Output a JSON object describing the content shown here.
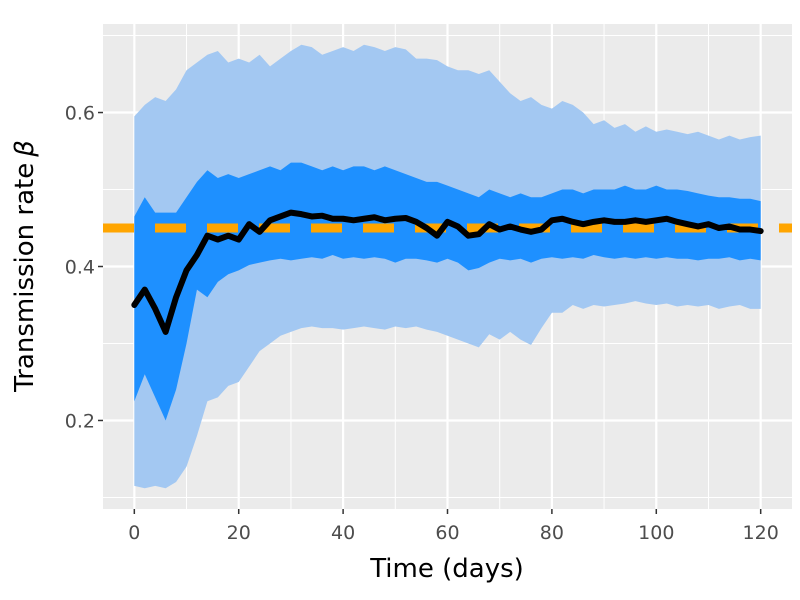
{
  "chart_data": {
    "type": "area",
    "xlabel": "Time (days)",
    "ylabel": "Transmission rate",
    "ylabel_symbol": "β",
    "xlim": [
      -6,
      126
    ],
    "ylim": [
      0.085,
      0.715
    ],
    "x_ticks": [
      0,
      20,
      40,
      60,
      80,
      100,
      120
    ],
    "x_tick_labels": [
      "0",
      "20",
      "40",
      "60",
      "80",
      "100",
      "120"
    ],
    "x_minor_ticks": [
      10,
      30,
      50,
      70,
      90,
      110
    ],
    "y_ticks": [
      0.2,
      0.4,
      0.6
    ],
    "y_tick_labels": [
      "0.2",
      "0.4",
      "0.6"
    ],
    "y_minor_ticks": [
      0.1,
      0.3,
      0.5,
      0.7
    ],
    "grid": true,
    "legend": "none",
    "colors": {
      "panel": "#ebebeb",
      "grid": "#ffffff",
      "outer_band": "#a3c8f2",
      "inner_band": "#1e90ff",
      "mean_line": "#000000",
      "reference_line": "#ffa500"
    },
    "reference_line": {
      "y": 0.45,
      "style": "dashed"
    },
    "x": [
      0,
      2,
      4,
      6,
      8,
      10,
      12,
      14,
      16,
      18,
      20,
      22,
      24,
      26,
      28,
      30,
      32,
      34,
      36,
      38,
      40,
      42,
      44,
      46,
      48,
      50,
      52,
      54,
      56,
      58,
      60,
      62,
      64,
      66,
      68,
      70,
      72,
      74,
      76,
      78,
      80,
      82,
      84,
      86,
      88,
      90,
      92,
      94,
      96,
      98,
      100,
      102,
      104,
      106,
      108,
      110,
      112,
      114,
      116,
      118,
      120
    ],
    "series": [
      {
        "role": "outer_interval",
        "lower": [
          0.115,
          0.112,
          0.115,
          0.112,
          0.12,
          0.14,
          0.18,
          0.225,
          0.23,
          0.245,
          0.25,
          0.27,
          0.29,
          0.3,
          0.31,
          0.315,
          0.32,
          0.322,
          0.32,
          0.32,
          0.318,
          0.32,
          0.322,
          0.32,
          0.318,
          0.322,
          0.32,
          0.322,
          0.318,
          0.315,
          0.31,
          0.305,
          0.3,
          0.295,
          0.312,
          0.305,
          0.315,
          0.305,
          0.298,
          0.32,
          0.34,
          0.34,
          0.35,
          0.345,
          0.35,
          0.348,
          0.35,
          0.352,
          0.355,
          0.352,
          0.35,
          0.352,
          0.348,
          0.35,
          0.348,
          0.35,
          0.345,
          0.348,
          0.35,
          0.345,
          0.345
        ],
        "upper": [
          0.595,
          0.61,
          0.62,
          0.615,
          0.63,
          0.655,
          0.665,
          0.675,
          0.68,
          0.665,
          0.67,
          0.665,
          0.675,
          0.66,
          0.67,
          0.68,
          0.688,
          0.685,
          0.675,
          0.68,
          0.685,
          0.68,
          0.688,
          0.685,
          0.68,
          0.685,
          0.682,
          0.67,
          0.67,
          0.668,
          0.66,
          0.655,
          0.655,
          0.65,
          0.655,
          0.64,
          0.625,
          0.615,
          0.62,
          0.61,
          0.605,
          0.615,
          0.61,
          0.6,
          0.585,
          0.59,
          0.58,
          0.585,
          0.575,
          0.582,
          0.575,
          0.578,
          0.575,
          0.572,
          0.575,
          0.57,
          0.565,
          0.57,
          0.565,
          0.568,
          0.57
        ]
      },
      {
        "role": "inner_interval",
        "lower": [
          0.225,
          0.26,
          0.23,
          0.2,
          0.24,
          0.3,
          0.37,
          0.36,
          0.38,
          0.39,
          0.395,
          0.402,
          0.405,
          0.408,
          0.41,
          0.408,
          0.41,
          0.412,
          0.41,
          0.415,
          0.41,
          0.412,
          0.41,
          0.412,
          0.41,
          0.405,
          0.41,
          0.41,
          0.408,
          0.405,
          0.41,
          0.405,
          0.395,
          0.398,
          0.405,
          0.41,
          0.408,
          0.41,
          0.405,
          0.41,
          0.412,
          0.41,
          0.412,
          0.41,
          0.415,
          0.412,
          0.41,
          0.412,
          0.41,
          0.412,
          0.41,
          0.412,
          0.41,
          0.41,
          0.408,
          0.41,
          0.41,
          0.412,
          0.408,
          0.41,
          0.408
        ],
        "upper": [
          0.465,
          0.49,
          0.47,
          0.47,
          0.47,
          0.49,
          0.51,
          0.525,
          0.515,
          0.52,
          0.515,
          0.52,
          0.525,
          0.53,
          0.525,
          0.535,
          0.535,
          0.53,
          0.525,
          0.53,
          0.525,
          0.53,
          0.53,
          0.525,
          0.53,
          0.525,
          0.52,
          0.515,
          0.51,
          0.51,
          0.505,
          0.5,
          0.495,
          0.49,
          0.5,
          0.495,
          0.49,
          0.495,
          0.49,
          0.49,
          0.495,
          0.5,
          0.5,
          0.495,
          0.5,
          0.5,
          0.5,
          0.505,
          0.5,
          0.5,
          0.505,
          0.5,
          0.5,
          0.498,
          0.495,
          0.492,
          0.49,
          0.49,
          0.488,
          0.488,
          0.485
        ]
      },
      {
        "role": "mean",
        "values": [
          0.35,
          0.37,
          0.345,
          0.315,
          0.36,
          0.395,
          0.415,
          0.44,
          0.435,
          0.44,
          0.435,
          0.455,
          0.445,
          0.46,
          0.465,
          0.47,
          0.468,
          0.465,
          0.466,
          0.462,
          0.462,
          0.46,
          0.462,
          0.464,
          0.46,
          0.462,
          0.463,
          0.458,
          0.45,
          0.44,
          0.458,
          0.452,
          0.44,
          0.442,
          0.455,
          0.448,
          0.452,
          0.448,
          0.445,
          0.448,
          0.46,
          0.462,
          0.458,
          0.455,
          0.458,
          0.46,
          0.458,
          0.458,
          0.46,
          0.458,
          0.46,
          0.462,
          0.458,
          0.455,
          0.452,
          0.455,
          0.45,
          0.452,
          0.448,
          0.448,
          0.446
        ]
      }
    ]
  }
}
